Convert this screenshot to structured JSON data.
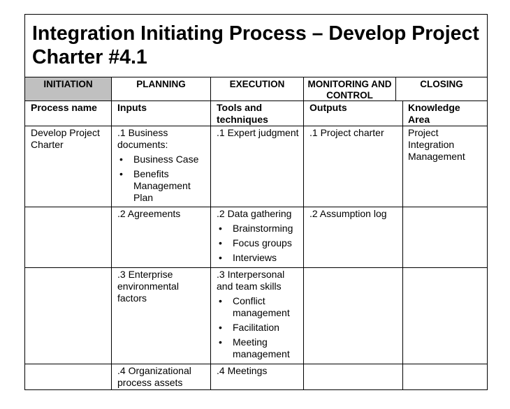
{
  "title": "Integration Initiating Process – Develop Project Charter #4.1",
  "phases": [
    "INITIATION",
    "PLANNING",
    "EXECUTION",
    "MONITORING AND CONTROL",
    "CLOSING"
  ],
  "headers": [
    "Process name",
    "Inputs",
    "Tools and techniques",
    "Outputs",
    "Knowledge Area"
  ],
  "rows": [
    {
      "process": "Develop Project Charter",
      "input": ".1 Business documents:",
      "input_bullets": [
        "Business Case",
        "Benefits Management Plan"
      ],
      "tool": ".1 Expert judgment",
      "tool_bullets": [],
      "output": ".1 Project charter",
      "area": "Project Integration Management"
    },
    {
      "process": "",
      "input": ".2 Agreements",
      "input_bullets": [],
      "tool": ".2 Data gathering",
      "tool_bullets": [
        "Brainstorming",
        "Focus groups",
        "Interviews"
      ],
      "output": ".2 Assumption log",
      "area": ""
    },
    {
      "process": "",
      "input": ".3 Enterprise environmental factors",
      "input_bullets": [],
      "tool": ".3 Interpersonal and team skills",
      "tool_bullets": [
        "Conflict management",
        "Facilitation",
        "Meeting management"
      ],
      "output": "",
      "area": ""
    },
    {
      "process": "",
      "input": ".4 Organizational process assets",
      "input_bullets": [],
      "tool": ".4 Meetings",
      "tool_bullets": [],
      "output": "",
      "area": ""
    }
  ]
}
